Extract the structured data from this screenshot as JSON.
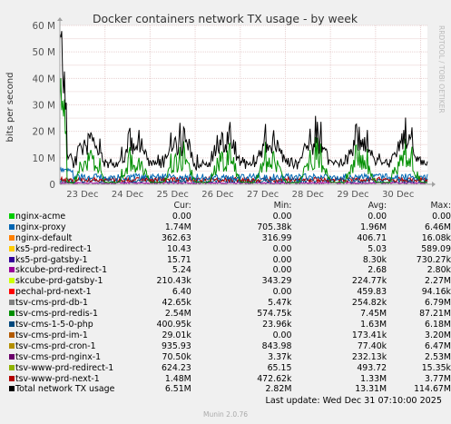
{
  "chart_data": {
    "type": "line",
    "title": "Docker containers network TX usage - by week",
    "ylabel": "bits per second",
    "watermark": "RRDTOOL / TOBI OETIKER",
    "ylim": [
      0,
      60000000
    ],
    "yticks": [
      {
        "v": 0,
        "label": "0"
      },
      {
        "v": 10000000,
        "label": "10 M"
      },
      {
        "v": 20000000,
        "label": "20 M"
      },
      {
        "v": 30000000,
        "label": "30 M"
      },
      {
        "v": 40000000,
        "label": "40 M"
      },
      {
        "v": 50000000,
        "label": "50 M"
      },
      {
        "v": 60000000,
        "label": "60 M"
      }
    ],
    "xlim": [
      0,
      8.15
    ],
    "xticks": [
      {
        "v": 0.5,
        "label": "23 Dec"
      },
      {
        "v": 1.5,
        "label": "24 Dec"
      },
      {
        "v": 2.5,
        "label": "25 Dec"
      },
      {
        "v": 3.5,
        "label": "26 Dec"
      },
      {
        "v": 4.5,
        "label": "27 Dec"
      },
      {
        "v": 5.5,
        "label": "28 Dec"
      },
      {
        "v": 6.5,
        "label": "29 Dec"
      },
      {
        "v": 7.5,
        "label": "30 Dec"
      }
    ],
    "grid": true,
    "colors": {
      "background": "#f0f0f0",
      "plot_bg": "#ffffff",
      "grid": "#e8d0d0",
      "axis": "#a0a0a0",
      "frame": "#cccccc",
      "total": "#000000",
      "green": "#00cc00",
      "blue": "#0066b3",
      "orange": "#ff8000",
      "yellow": "#ffcc00",
      "darkblue": "#330099",
      "purple": "#990099",
      "lime": "#ccff00",
      "red": "#ff0000",
      "grey": "#808080",
      "olive": "#008f00",
      "darkteal": "#00487d",
      "brown": "#b35a00",
      "khaki": "#b38f00",
      "violet": "#6b006b",
      "darkgreen": "#8fb300",
      "darkred": "#b30000"
    },
    "legend_placement": "bottom"
  },
  "legend": {
    "headers": {
      "cur": "Cur:",
      "min": "Min:",
      "avg": "Avg:",
      "max": "Max:"
    },
    "rows": [
      {
        "name": "nginx-acme",
        "color": "#00cc00",
        "cur": "0.00",
        "min": "0.00",
        "avg": "0.00",
        "max": "0.00"
      },
      {
        "name": "nginx-proxy",
        "color": "#0066b3",
        "cur": "1.74M",
        "min": "705.38k",
        "avg": "1.96M",
        "max": "6.46M"
      },
      {
        "name": "nginx-default",
        "color": "#ff8000",
        "cur": "362.63",
        "min": "316.99",
        "avg": "406.71",
        "max": "16.08k"
      },
      {
        "name": "ks5-prd-redirect-1",
        "color": "#ffcc00",
        "cur": "10.43",
        "min": "0.00",
        "avg": "5.03",
        "max": "589.09"
      },
      {
        "name": "ks5-prd-gatsby-1",
        "color": "#330099",
        "cur": "15.71",
        "min": "0.00",
        "avg": "8.30k",
        "max": "730.27k"
      },
      {
        "name": "skcube-prd-redirect-1",
        "color": "#990099",
        "cur": "5.24",
        "min": "0.00",
        "avg": "2.68",
        "max": "2.80k"
      },
      {
        "name": "skcube-prd-gatsby-1",
        "color": "#ccff00",
        "cur": "210.43k",
        "min": "343.29",
        "avg": "224.77k",
        "max": "2.27M"
      },
      {
        "name": "pechal-prd-next-1",
        "color": "#ff0000",
        "cur": "6.40",
        "min": "0.00",
        "avg": "459.83",
        "max": "94.16k"
      },
      {
        "name": "tsv-cms-prd-db-1",
        "color": "#808080",
        "cur": "42.65k",
        "min": "5.47k",
        "avg": "254.82k",
        "max": "6.79M"
      },
      {
        "name": "tsv-cms-prd-redis-1",
        "color": "#008f00",
        "cur": "2.54M",
        "min": "574.75k",
        "avg": "7.45M",
        "max": "87.21M"
      },
      {
        "name": "tsv-cms-1-5-0-php",
        "color": "#00487d",
        "cur": "400.95k",
        "min": "23.96k",
        "avg": "1.63M",
        "max": "6.18M"
      },
      {
        "name": "tsv-cms-prd-im-1",
        "color": "#b35a00",
        "cur": "29.01k",
        "min": "0.00",
        "avg": "173.41k",
        "max": "3.20M"
      },
      {
        "name": "tsv-cms-prd-cron-1",
        "color": "#b38f00",
        "cur": "935.93",
        "min": "843.98",
        "avg": "77.40k",
        "max": "6.47M"
      },
      {
        "name": "tsv-cms-prd-nginx-1",
        "color": "#6b006b",
        "cur": "70.50k",
        "min": "3.37k",
        "avg": "232.13k",
        "max": "2.53M"
      },
      {
        "name": "tsv-www-prd-redirect-1",
        "color": "#8fb300",
        "cur": "624.23",
        "min": "65.15",
        "avg": "493.72",
        "max": "15.35k"
      },
      {
        "name": "tsv-www-prd-next-1",
        "color": "#b30000",
        "cur": "1.48M",
        "min": "472.62k",
        "avg": "1.33M",
        "max": "3.77M"
      },
      {
        "name": "Total network TX usage",
        "color": "#000000",
        "cur": "6.51M",
        "min": "2.82M",
        "avg": "13.31M",
        "max": "114.67M"
      }
    ]
  },
  "last_update": "Last update: Wed Dec 31 07:10:00 2025",
  "footer": "Munin 2.0.76"
}
